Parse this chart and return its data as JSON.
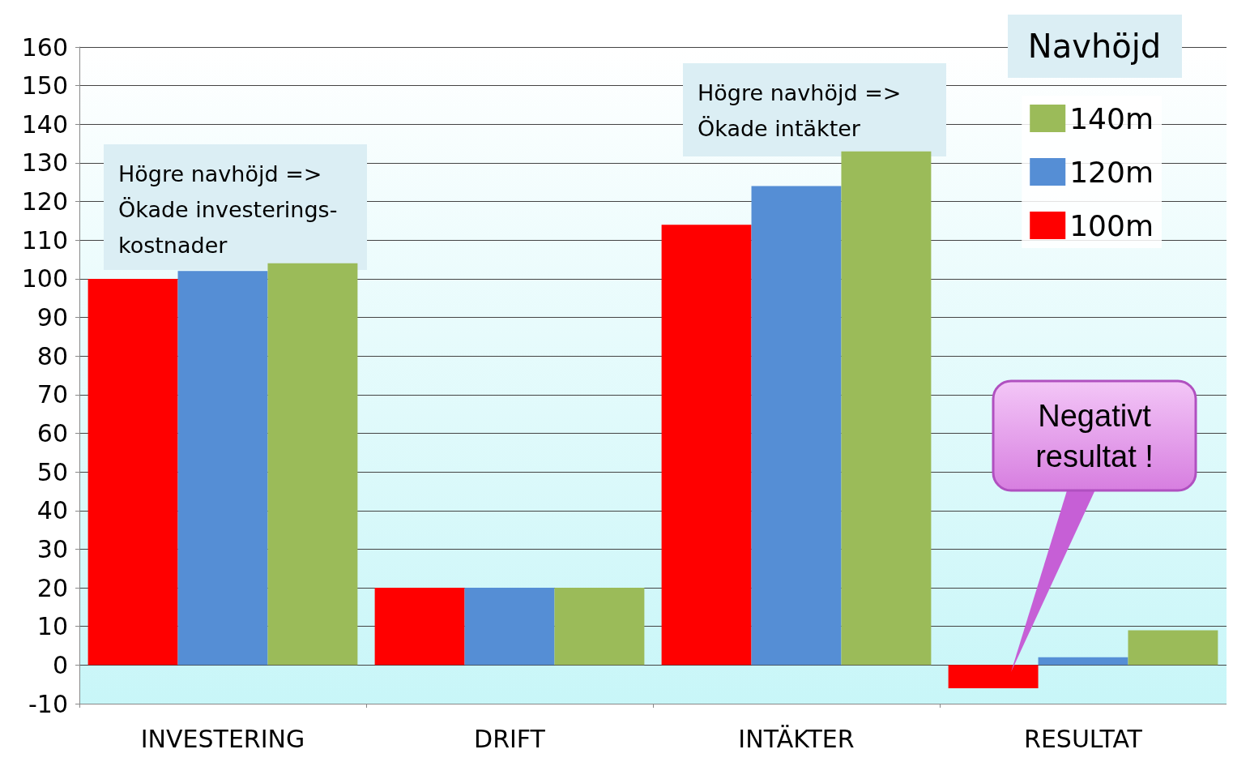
{
  "chart_data": {
    "type": "bar",
    "categories": [
      "INVESTERING",
      "DRIFT",
      "INTÄKTER",
      "RESULTAT"
    ],
    "series": [
      {
        "name": "100m",
        "color": "#ff0000",
        "values": [
          100,
          20,
          114,
          -6
        ]
      },
      {
        "name": "120m",
        "color": "#558ed5",
        "values": [
          102,
          20,
          124,
          2
        ]
      },
      {
        "name": "140m",
        "color": "#9bbb59",
        "values": [
          104,
          20,
          133,
          9
        ]
      }
    ],
    "ylim": [
      -10,
      160
    ],
    "yticks": [
      -10,
      0,
      10,
      20,
      30,
      40,
      50,
      60,
      70,
      80,
      90,
      100,
      110,
      120,
      130,
      140,
      150,
      160
    ],
    "grid": "y",
    "legend": "top right",
    "legend_title": "Navhöjd",
    "annotations": [
      "Högre navhöjd =>\nÖkade investerings-\nkostnader",
      "Högre navhöjd =>\nÖkade intäkter",
      "Negativt\nresultat !"
    ]
  }
}
